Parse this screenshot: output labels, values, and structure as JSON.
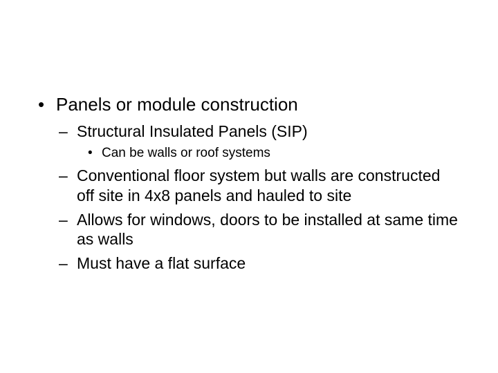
{
  "background_color": "#ffffff",
  "text_color": "#000000",
  "font_family": "Arial",
  "bullets": {
    "l1_fontsize": 26,
    "l2_fontsize": 23,
    "l3_fontsize": 19,
    "l1_marker": "•",
    "l2_marker": "–",
    "l3_marker": "•"
  },
  "items": {
    "main": "Panels or module construction",
    "sub1": "Structural Insulated Panels (SIP)",
    "sub1a": "Can be walls or roof systems",
    "sub2": "Conventional floor system but walls are constructed off site in 4x8 panels and hauled to site",
    "sub3": "Allows for windows, doors to be installed at same time as walls",
    "sub4": "Must have a flat surface"
  }
}
